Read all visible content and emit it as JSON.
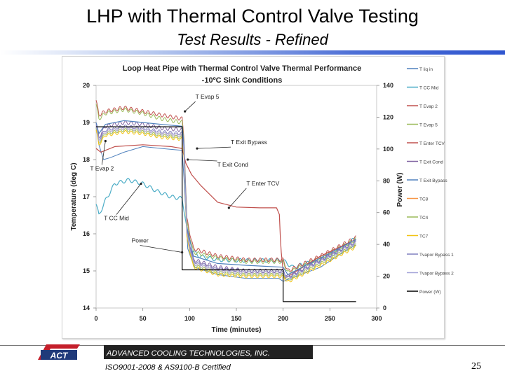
{
  "slide": {
    "title": "LHP with Thermal Control Valve Testing",
    "subtitle": "Test Results - Refined",
    "company": "ADVANCED COOLING TECHNOLOGIES, INC.",
    "certification": "ISO9001-2008 & AS9100-B Certified",
    "page_number": "25",
    "logo_text": "ACT"
  },
  "colors": {
    "accent": "#2f55cf",
    "footer_dark": "#222222",
    "logo_red": "#c41e2a"
  },
  "chart_data": {
    "type": "line",
    "title_line1": "Loop Heat Pipe with Thermal Control Valve Thermal Performance",
    "title_line2": "-10ºC Sink Conditions",
    "xlabel": "Time (minutes)",
    "ylabel": "Temperature (deg C)",
    "y2label": "Power (W)",
    "xlim": [
      0,
      300
    ],
    "ylim": [
      14,
      20
    ],
    "y2lim": [
      0,
      140
    ],
    "xticks": [
      "0",
      "50",
      "100",
      "150",
      "200",
      "250",
      "300"
    ],
    "yticks": [
      "14",
      "15",
      "16",
      "17",
      "18",
      "19",
      "20"
    ],
    "y2ticks": [
      "0",
      "20",
      "40",
      "60",
      "80",
      "100",
      "120",
      "140"
    ],
    "grid": false,
    "legend_position": "right",
    "series": [
      {
        "name": "T liq in",
        "color": "#4f81bd",
        "width": 1,
        "points": [
          [
            0,
            18.9
          ],
          [
            3,
            18.4
          ],
          [
            8,
            18.0
          ],
          [
            15,
            18.05
          ],
          [
            30,
            18.2
          ],
          [
            50,
            18.35
          ],
          [
            70,
            18.3
          ],
          [
            92,
            18.25
          ],
          [
            94,
            17.5
          ],
          [
            98,
            15.6
          ],
          [
            105,
            15.1
          ],
          [
            130,
            14.9
          ],
          [
            160,
            14.8
          ],
          [
            195,
            14.8
          ],
          [
            200,
            14.72
          ],
          [
            240,
            15.1
          ],
          [
            270,
            15.6
          ],
          [
            278,
            15.7
          ]
        ]
      },
      {
        "name": "T CC Mid",
        "color": "#4bacc6",
        "width": 1.2,
        "amp": 0.05,
        "period": 8,
        "points": [
          [
            0,
            16.8
          ],
          [
            3,
            16.5
          ],
          [
            10,
            16.9
          ],
          [
            20,
            17.35
          ],
          [
            35,
            17.45
          ],
          [
            50,
            17.35
          ],
          [
            65,
            17.15
          ],
          [
            80,
            17.0
          ],
          [
            92,
            16.95
          ],
          [
            95,
            16.5
          ],
          [
            100,
            15.6
          ],
          [
            110,
            15.4
          ],
          [
            130,
            15.3
          ],
          [
            160,
            15.28
          ],
          [
            200,
            15.28
          ],
          [
            210,
            15.1
          ],
          [
            240,
            15.3
          ],
          [
            260,
            15.55
          ],
          [
            278,
            15.9
          ]
        ]
      },
      {
        "name": "T Evap 2",
        "color": "#c0504d",
        "width": 1,
        "amp": 0.05,
        "period": 6,
        "points": [
          [
            0,
            19.6
          ],
          [
            3,
            19.2
          ],
          [
            10,
            19.3
          ],
          [
            30,
            19.4
          ],
          [
            50,
            19.3
          ],
          [
            70,
            19.2
          ],
          [
            92,
            19.1
          ],
          [
            94,
            18.6
          ],
          [
            97,
            16.4
          ],
          [
            104,
            15.6
          ],
          [
            130,
            15.4
          ],
          [
            160,
            15.3
          ],
          [
            200,
            15.3
          ],
          [
            205,
            15.0
          ],
          [
            240,
            15.4
          ],
          [
            278,
            15.9
          ]
        ]
      },
      {
        "name": "T Evap 5",
        "color": "#9bbb59",
        "width": 1,
        "amp": 0.05,
        "period": 6,
        "points": [
          [
            0,
            19.5
          ],
          [
            3,
            19.1
          ],
          [
            10,
            19.25
          ],
          [
            30,
            19.35
          ],
          [
            50,
            19.25
          ],
          [
            70,
            19.1
          ],
          [
            92,
            19.0
          ],
          [
            94,
            18.5
          ],
          [
            97,
            16.3
          ],
          [
            104,
            15.5
          ],
          [
            130,
            15.35
          ],
          [
            160,
            15.25
          ],
          [
            200,
            15.25
          ],
          [
            205,
            14.95
          ],
          [
            240,
            15.35
          ],
          [
            278,
            15.85
          ]
        ]
      },
      {
        "name": "T Enter TCV",
        "color": "#c0504d",
        "width": 1.2,
        "points": [
          [
            0,
            18.3
          ],
          [
            5,
            18.2
          ],
          [
            20,
            18.35
          ],
          [
            50,
            18.4
          ],
          [
            80,
            18.35
          ],
          [
            92,
            18.3
          ],
          [
            96,
            17.9
          ],
          [
            102,
            17.6
          ],
          [
            112,
            17.3
          ],
          [
            130,
            16.85
          ],
          [
            150,
            16.72
          ],
          [
            175,
            16.7
          ],
          [
            193,
            16.7
          ],
          [
            196,
            16.52
          ],
          [
            197,
            15.9
          ],
          [
            198,
            15.5
          ],
          [
            200,
            15.0
          ],
          [
            202,
            14.8
          ],
          [
            240,
            15.4
          ],
          [
            278,
            15.85
          ]
        ]
      },
      {
        "name": "T Exit Cond",
        "color": "#8064a2",
        "width": 1,
        "amp": 0.05,
        "period": 6,
        "points": [
          [
            0,
            19.0
          ],
          [
            3,
            18.6
          ],
          [
            10,
            18.9
          ],
          [
            30,
            19.0
          ],
          [
            50,
            18.95
          ],
          [
            70,
            18.85
          ],
          [
            92,
            18.8
          ],
          [
            94,
            18.3
          ],
          [
            97,
            16.1
          ],
          [
            104,
            15.3
          ],
          [
            130,
            15.1
          ],
          [
            160,
            15.0
          ],
          [
            200,
            15.0
          ],
          [
            205,
            14.85
          ],
          [
            240,
            15.3
          ],
          [
            278,
            15.8
          ]
        ]
      },
      {
        "name": "T Exit Bypass",
        "color": "#4f81bd",
        "width": 1.2,
        "points": [
          [
            0,
            19.0
          ],
          [
            3,
            18.7
          ],
          [
            10,
            18.95
          ],
          [
            30,
            19.05
          ],
          [
            50,
            19.0
          ],
          [
            70,
            18.95
          ],
          [
            92,
            18.9
          ],
          [
            94,
            18.4
          ],
          [
            97,
            16.2
          ],
          [
            104,
            15.4
          ],
          [
            130,
            15.2
          ],
          [
            160,
            15.15
          ],
          [
            200,
            15.1
          ],
          [
            205,
            14.9
          ],
          [
            240,
            15.35
          ],
          [
            278,
            15.85
          ]
        ]
      },
      {
        "name": "TC8",
        "color": "#f79646",
        "width": 1,
        "amp": 0.04,
        "period": 6,
        "points": [
          [
            0,
            18.9
          ],
          [
            3,
            18.5
          ],
          [
            10,
            18.75
          ],
          [
            30,
            18.85
          ],
          [
            50,
            18.8
          ],
          [
            70,
            18.7
          ],
          [
            92,
            18.65
          ],
          [
            94,
            18.2
          ],
          [
            97,
            16.0
          ],
          [
            104,
            15.2
          ],
          [
            130,
            15.0
          ],
          [
            160,
            14.95
          ],
          [
            200,
            14.95
          ],
          [
            205,
            14.8
          ],
          [
            240,
            15.25
          ],
          [
            278,
            15.75
          ]
        ]
      },
      {
        "name": "TC4",
        "color": "#9bbb59",
        "width": 1,
        "amp": 0.04,
        "period": 6,
        "points": [
          [
            0,
            18.85
          ],
          [
            3,
            18.45
          ],
          [
            10,
            18.7
          ],
          [
            30,
            18.8
          ],
          [
            50,
            18.75
          ],
          [
            70,
            18.65
          ],
          [
            92,
            18.6
          ],
          [
            94,
            18.15
          ],
          [
            97,
            15.95
          ],
          [
            104,
            15.15
          ],
          [
            130,
            14.95
          ],
          [
            160,
            14.9
          ],
          [
            200,
            14.9
          ],
          [
            205,
            14.75
          ],
          [
            240,
            15.2
          ],
          [
            278,
            15.7
          ]
        ]
      },
      {
        "name": "TC7",
        "color": "#f2c314",
        "width": 1,
        "amp": 0.04,
        "period": 6,
        "points": [
          [
            0,
            18.8
          ],
          [
            3,
            18.4
          ],
          [
            10,
            18.65
          ],
          [
            30,
            18.75
          ],
          [
            50,
            18.7
          ],
          [
            70,
            18.6
          ],
          [
            92,
            18.55
          ],
          [
            94,
            18.1
          ],
          [
            97,
            15.9
          ],
          [
            104,
            15.1
          ],
          [
            130,
            14.9
          ],
          [
            160,
            14.85
          ],
          [
            200,
            14.85
          ],
          [
            205,
            14.7
          ],
          [
            240,
            15.15
          ],
          [
            278,
            15.65
          ]
        ]
      },
      {
        "name": "Tvapor Bypass 1",
        "color": "#7f7fbf",
        "width": 1,
        "amp": 0.04,
        "period": 6,
        "points": [
          [
            0,
            18.95
          ],
          [
            3,
            18.55
          ],
          [
            10,
            18.8
          ],
          [
            30,
            18.9
          ],
          [
            50,
            18.85
          ],
          [
            70,
            18.75
          ],
          [
            92,
            18.7
          ],
          [
            94,
            18.25
          ],
          [
            97,
            16.05
          ],
          [
            104,
            15.25
          ],
          [
            130,
            15.05
          ],
          [
            160,
            15.0
          ],
          [
            200,
            15.0
          ],
          [
            205,
            14.82
          ],
          [
            240,
            15.28
          ],
          [
            278,
            15.78
          ]
        ]
      },
      {
        "name": "Tvapor Bypass 2",
        "color": "#a6a6d9",
        "width": 1,
        "amp": 0.04,
        "period": 6,
        "points": [
          [
            0,
            18.9
          ],
          [
            3,
            18.5
          ],
          [
            10,
            18.75
          ],
          [
            30,
            18.85
          ],
          [
            50,
            18.8
          ],
          [
            70,
            18.7
          ],
          [
            92,
            18.65
          ],
          [
            94,
            18.2
          ],
          [
            97,
            16.0
          ],
          [
            104,
            15.2
          ],
          [
            130,
            15.0
          ],
          [
            160,
            14.95
          ],
          [
            200,
            14.95
          ],
          [
            205,
            14.8
          ],
          [
            240,
            15.25
          ],
          [
            278,
            15.75
          ]
        ]
      },
      {
        "name": "Power (W)",
        "color": "#000000",
        "width": 1.2,
        "axis": "y2",
        "points": [
          [
            0,
            114
          ],
          [
            92,
            114
          ],
          [
            92,
            24
          ],
          [
            200,
            24
          ],
          [
            200,
            4
          ],
          [
            278,
            4
          ]
        ]
      }
    ],
    "legend": [
      {
        "label": "T liq in",
        "color": "#4f81bd"
      },
      {
        "label": "T CC Mid",
        "color": "#4bacc6"
      },
      {
        "label": "T Evap 2",
        "color": "#c0504d"
      },
      {
        "label": "T Evap 5",
        "color": "#9bbb59"
      },
      {
        "label": "T Enter TCV",
        "color": "#c0504d"
      },
      {
        "label": "T Exit Cond",
        "color": "#8064a2"
      },
      {
        "label": "T Exit Bypass",
        "color": "#4f81bd"
      },
      {
        "label": "TC8",
        "color": "#f79646"
      },
      {
        "label": "TC4",
        "color": "#9bbb59"
      },
      {
        "label": "TC7",
        "color": "#f2c314"
      },
      {
        "label": "Tvapor Bypass 1",
        "color": "#7f7fbf"
      },
      {
        "label": "Tvapor Bypass 2",
        "color": "#a6a6d9"
      },
      {
        "label": "Power (W)",
        "color": "#000000"
      }
    ],
    "annotations": [
      {
        "label": "T Evap 5",
        "x": 95,
        "y": 19.3
      },
      {
        "label": "T Exit Bypass",
        "x": 108,
        "y": 18.3
      },
      {
        "label": "T Exit Cond",
        "x": 98,
        "y": 18.0
      },
      {
        "label": "T Enter TCV",
        "x": 142,
        "y": 16.7
      },
      {
        "label": "T Evap 2",
        "x": 10,
        "y": 18.5
      },
      {
        "label": "T CC Mid",
        "x": 48,
        "y": 17.35
      },
      {
        "label": "Power",
        "x": 92,
        "y": 15.5
      }
    ]
  }
}
